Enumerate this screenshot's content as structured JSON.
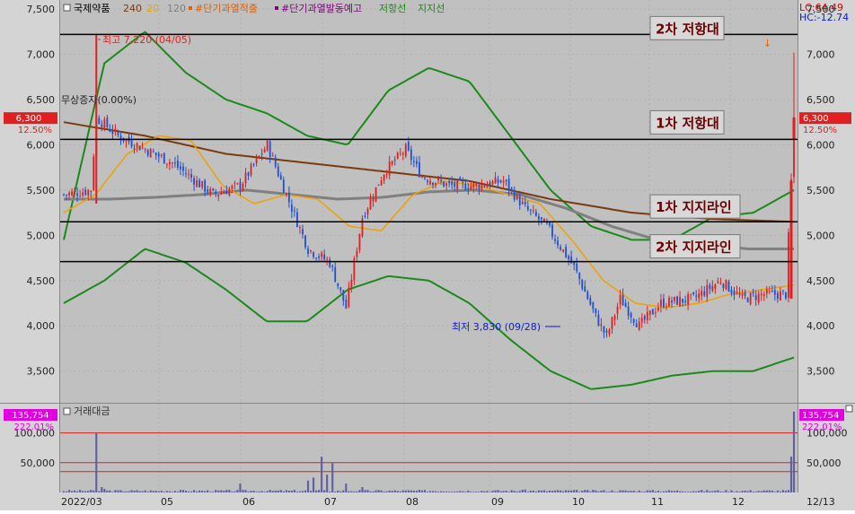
{
  "colors": {
    "background": "#c0c0c0",
    "candle_up": "#e02020",
    "candle_down": "#2050d0",
    "ma240": "#7a3a10",
    "ma20": "#f0a000",
    "ma120": "#808080",
    "bollinger": "#1a8a1a",
    "volume": "#6060a0",
    "level_line": "#000000",
    "price_tag": "#e02020",
    "volume_tag": "#e000e0"
  },
  "legend": {
    "stock_name": "국제약품",
    "ma240": "240",
    "ma20": "20",
    "ma120": "120",
    "signal_overheat": "#단기과열적출",
    "signal_warning": "#단기과열발동예고",
    "resistance": "저항선",
    "support": "지지선"
  },
  "top_right": {
    "lc": "LC:64.49",
    "hc": "HC:-12.74"
  },
  "price_tag": {
    "price": "6,300",
    "change": "12.50%"
  },
  "volume_panel": {
    "title": "거래대금",
    "tag_value": "135,754",
    "tag_change": "222.01%"
  },
  "annotations": {
    "high": "최고 7,220 (04/05)",
    "low": "최저 3,830 (09/28)",
    "disclosure": "무상증자(0.00%)"
  },
  "levels": [
    {
      "label": "2차 저항대",
      "price": 7220
    },
    {
      "label": "1차 저항대",
      "price": 6060
    },
    {
      "label": "1차 지지라인",
      "price": 5150
    },
    {
      "label": "2차 지지라인",
      "price": 4710
    }
  ],
  "chart_data": [
    {
      "type": "candlestick",
      "title": "",
      "ylim": [
        3150,
        7600
      ],
      "yticks": [
        "3,500",
        "4,000",
        "4,500",
        "5,000",
        "5,500",
        "6,000",
        "6,500",
        "7,000",
        "7,500"
      ],
      "ytick_values": [
        3500,
        4000,
        4500,
        5000,
        5500,
        6000,
        6500,
        7000,
        7500
      ],
      "xticks": [
        "2022/03",
        "05",
        "06",
        "07",
        "08",
        "09",
        "10",
        "11",
        "12",
        "12/13"
      ],
      "grid": true,
      "ohlc_keypoints": [
        {
          "i": 0,
          "c": 5450
        },
        {
          "i": 10,
          "c": 5500
        },
        {
          "i": 12,
          "c": 6300
        },
        {
          "i": 20,
          "c": 6100
        },
        {
          "i": 30,
          "c": 5950
        },
        {
          "i": 40,
          "c": 5800
        },
        {
          "i": 55,
          "c": 5450
        },
        {
          "i": 65,
          "c": 5550
        },
        {
          "i": 75,
          "c": 6000
        },
        {
          "i": 82,
          "c": 5450
        },
        {
          "i": 90,
          "c": 4850
        },
        {
          "i": 98,
          "c": 4700
        },
        {
          "i": 104,
          "c": 4200
        },
        {
          "i": 110,
          "c": 5200
        },
        {
          "i": 118,
          "c": 5700
        },
        {
          "i": 126,
          "c": 5950
        },
        {
          "i": 132,
          "c": 5650
        },
        {
          "i": 142,
          "c": 5550
        },
        {
          "i": 152,
          "c": 5550
        },
        {
          "i": 162,
          "c": 5600
        },
        {
          "i": 170,
          "c": 5300
        },
        {
          "i": 178,
          "c": 5100
        },
        {
          "i": 188,
          "c": 4650
        },
        {
          "i": 196,
          "c": 4100
        },
        {
          "i": 200,
          "c": 3880
        },
        {
          "i": 205,
          "c": 4300
        },
        {
          "i": 212,
          "c": 4000
        },
        {
          "i": 220,
          "c": 4250
        },
        {
          "i": 232,
          "c": 4300
        },
        {
          "i": 242,
          "c": 4500
        },
        {
          "i": 250,
          "c": 4300
        },
        {
          "i": 258,
          "c": 4350
        },
        {
          "i": 266,
          "c": 4350
        },
        {
          "i": 268,
          "c": 5600
        },
        {
          "i": 269,
          "c": 6300
        }
      ],
      "ma20": [
        5250,
        5450,
        5900,
        6100,
        6050,
        5550,
        5350,
        5450,
        5400,
        5100,
        5050,
        5450,
        5600,
        5550,
        5450,
        5350,
        4950,
        4500,
        4250,
        4200,
        4250,
        4350,
        4400,
        4450
      ],
      "ma120": [
        5400,
        5400,
        5420,
        5450,
        5500,
        5450,
        5400,
        5420,
        5480,
        5500,
        5450,
        5300,
        5100,
        4950,
        4900,
        4850,
        4850
      ],
      "ma240": [
        6250,
        6100,
        5900,
        5800,
        5700,
        5600,
        5400,
        5250,
        5180,
        5150
      ],
      "bollinger_upper": [
        4950,
        6900,
        7250,
        6800,
        6500,
        6350,
        6100,
        6000,
        6600,
        6850,
        6700,
        6100,
        5500,
        5100,
        4950,
        4950,
        5200,
        5250,
        5500
      ],
      "bollinger_lower": [
        4250,
        4500,
        4850,
        4700,
        4400,
        4050,
        4050,
        4400,
        4550,
        4500,
        4250,
        3850,
        3500,
        3300,
        3350,
        3450,
        3500,
        3500,
        3650
      ]
    },
    {
      "type": "bar",
      "title": "거래대금",
      "ylim": [
        0,
        140000
      ],
      "yticks": [
        "50,000",
        "100,000"
      ],
      "ytick_values": [
        50000,
        100000
      ],
      "reference_lines": [
        35000,
        50000,
        100000
      ],
      "spikes": [
        {
          "i": 12,
          "v": 100000
        },
        {
          "i": 14,
          "v": 9000
        },
        {
          "i": 15,
          "v": 6000
        },
        {
          "i": 65,
          "v": 15000
        },
        {
          "i": 90,
          "v": 20000
        },
        {
          "i": 92,
          "v": 25000
        },
        {
          "i": 95,
          "v": 60000
        },
        {
          "i": 97,
          "v": 30000
        },
        {
          "i": 99,
          "v": 50000
        },
        {
          "i": 104,
          "v": 15000
        },
        {
          "i": 110,
          "v": 9000
        },
        {
          "i": 170,
          "v": 5000
        },
        {
          "i": 268,
          "v": 60000
        },
        {
          "i": 269,
          "v": 135754
        }
      ]
    }
  ]
}
